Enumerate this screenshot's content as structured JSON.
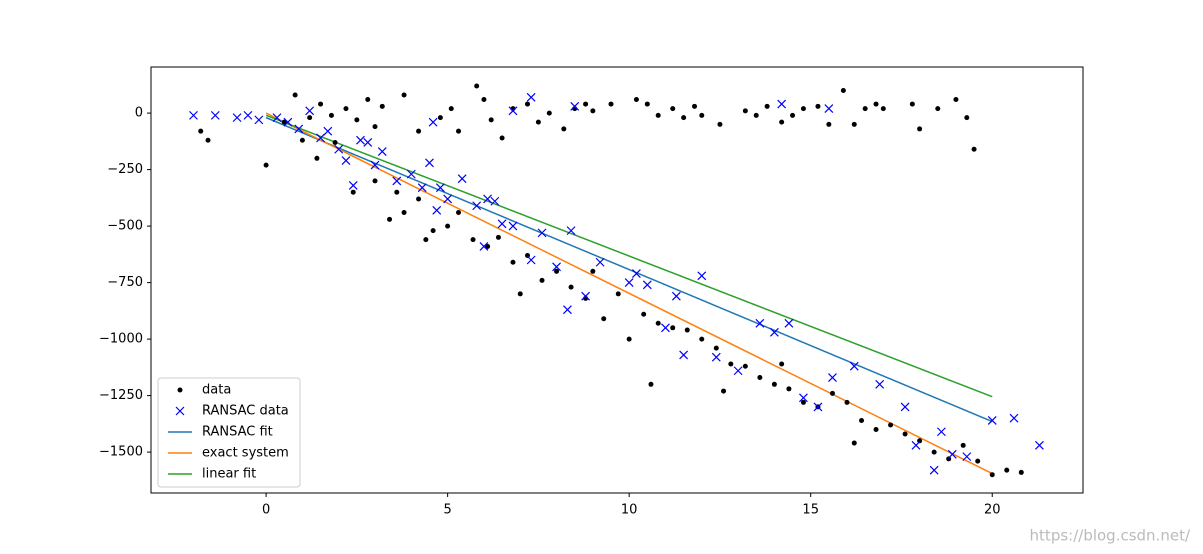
{
  "chart_data": {
    "type": "scatter",
    "xlim": [
      -3.17,
      22.5
    ],
    "ylim": [
      -1681,
      204
    ],
    "xticks": [
      0,
      5,
      10,
      15,
      20
    ],
    "yticks": [
      {
        "value": -1500,
        "label": "−1500"
      },
      {
        "value": -1250,
        "label": "−1250"
      },
      {
        "value": -1000,
        "label": "−1000"
      },
      {
        "value": -750,
        "label": "−750"
      },
      {
        "value": -500,
        "label": "−500"
      },
      {
        "value": -250,
        "label": "−250"
      },
      0
    ],
    "legend": "lower left",
    "watermark": "https://blog.csdn.net/",
    "series": [
      {
        "name": "data",
        "type": "scatter",
        "marker": "dot",
        "color": "#000000",
        "x": [
          0.8,
          1.2,
          1.5,
          1.8,
          2.2,
          2.5,
          2.8,
          3.0,
          3.2,
          3.8,
          4.2,
          4.8,
          5.1,
          5.3,
          5.8,
          6.0,
          6.2,
          6.5,
          6.8,
          7.2,
          7.5,
          7.8,
          8.2,
          8.5,
          8.8,
          9.0,
          9.5,
          10.2,
          10.5,
          10.8,
          11.2,
          11.5,
          11.8,
          12.0,
          12.5,
          13.2,
          13.5,
          13.8,
          14.2,
          14.5,
          14.8,
          15.2,
          15.5,
          15.9,
          16.2,
          16.5,
          16.8,
          17.0,
          17.8,
          18.0,
          18.5,
          19.0,
          19.3,
          19.5,
          -1.8,
          -1.6,
          0,
          0.5,
          1.0,
          1.4,
          1.9,
          2.4,
          3.0,
          3.4,
          3.8,
          4.2,
          4.6,
          5.0,
          5.3,
          5.7,
          6.1,
          6.4,
          6.8,
          7.2,
          7.6,
          8.0,
          8.4,
          8.8,
          9.3,
          9.7,
          10.0,
          10.4,
          10.8,
          11.2,
          11.6,
          12.0,
          12.4,
          12.8,
          13.2,
          13.6,
          14.0,
          14.4,
          14.8,
          15.2,
          15.6,
          16.0,
          16.4,
          16.8,
          17.2,
          17.6,
          18.0,
          18.4,
          18.8,
          19.2,
          19.6,
          20.0,
          20.4,
          20.8,
          16.2,
          12.6,
          9.0,
          7.0,
          3.6,
          4.4,
          10.6,
          14.2
        ],
        "values": [
          80,
          -20,
          40,
          -10,
          20,
          -30,
          60,
          -60,
          30,
          80,
          -80,
          -20,
          20,
          -80,
          120,
          60,
          -30,
          -110,
          20,
          40,
          -40,
          0,
          -70,
          20,
          40,
          10,
          40,
          60,
          40,
          -10,
          20,
          -20,
          30,
          -10,
          -50,
          10,
          -10,
          30,
          -40,
          -10,
          20,
          30,
          -50,
          100,
          -50,
          20,
          40,
          20,
          40,
          -70,
          20,
          60,
          -20,
          -160,
          -80,
          -120,
          -230,
          -40,
          -120,
          -200,
          -130,
          -350,
          -300,
          -470,
          -440,
          -380,
          -520,
          -500,
          -440,
          -560,
          -590,
          -550,
          -660,
          -630,
          -740,
          -700,
          -770,
          -820,
          -910,
          -800,
          -1000,
          -890,
          -930,
          -950,
          -960,
          -1000,
          -1040,
          -1110,
          -1120,
          -1170,
          -1200,
          -1220,
          -1280,
          -1300,
          -1240,
          -1280,
          -1360,
          -1400,
          -1380,
          -1420,
          -1450,
          -1500,
          -1530,
          -1470,
          -1540,
          -1600,
          -1580,
          -1590,
          -1460,
          -1230,
          -700,
          -800,
          -350,
          -560,
          -1200,
          -1110
        ]
      },
      {
        "name": "RANSAC data",
        "type": "scatter",
        "marker": "x",
        "color": "#0000ff",
        "x": [
          -2,
          -1.4,
          -0.8,
          -0.5,
          -0.2,
          0.3,
          0.6,
          0.9,
          1.2,
          1.5,
          1.7,
          2.0,
          2.2,
          2.4,
          2.6,
          2.8,
          3.0,
          3.2,
          3.6,
          4.0,
          4.3,
          4.5,
          4.7,
          4.8,
          5.0,
          5.4,
          5.8,
          6.0,
          6.3,
          6.5,
          6.8,
          7.3,
          7.3,
          7.6,
          8.0,
          8.3,
          8.4,
          8.5,
          8.8,
          9.2,
          10.0,
          10.2,
          10.5,
          11.0,
          11.3,
          11.5,
          12.0,
          12.4,
          13.0,
          13.6,
          14.0,
          14.2,
          14.4,
          14.8,
          15.2,
          15.5,
          15.6,
          16.2,
          16.9,
          17.6,
          17.9,
          18.4,
          18.6,
          18.9,
          19.3,
          20.0,
          20.6,
          21.3,
          4.6,
          6.8,
          6.1
        ],
        "values": [
          -10,
          -10,
          -20,
          -10,
          -30,
          -20,
          -40,
          -70,
          10,
          -110,
          -80,
          -160,
          -210,
          -320,
          -120,
          -130,
          -230,
          -170,
          -300,
          -270,
          -330,
          -220,
          -430,
          -330,
          -380,
          -290,
          -410,
          -590,
          -390,
          -490,
          -500,
          -650,
          70,
          -530,
          -680,
          -870,
          -520,
          30,
          -810,
          -660,
          -750,
          -710,
          -760,
          -950,
          -810,
          -1070,
          -720,
          -1080,
          -1140,
          -930,
          -970,
          40,
          -930,
          -1260,
          -1300,
          20,
          -1170,
          -1120,
          -1200,
          -1300,
          -1470,
          -1580,
          -1410,
          -1510,
          -1520,
          -1360,
          -1350,
          -1470,
          -40,
          10,
          -380
        ]
      },
      {
        "name": "RANSAC fit",
        "type": "line",
        "color": "#1f77b4",
        "x": [
          0,
          20
        ],
        "values": [
          -20,
          -1365
        ]
      },
      {
        "name": "exact system",
        "type": "line",
        "color": "#ff7f0e",
        "x": [
          0,
          20
        ],
        "values": [
          0,
          -1595
        ]
      },
      {
        "name": "linear fit",
        "type": "line",
        "color": "#2ca02c",
        "x": [
          0,
          20
        ],
        "values": [
          -10,
          -1255
        ]
      }
    ]
  }
}
